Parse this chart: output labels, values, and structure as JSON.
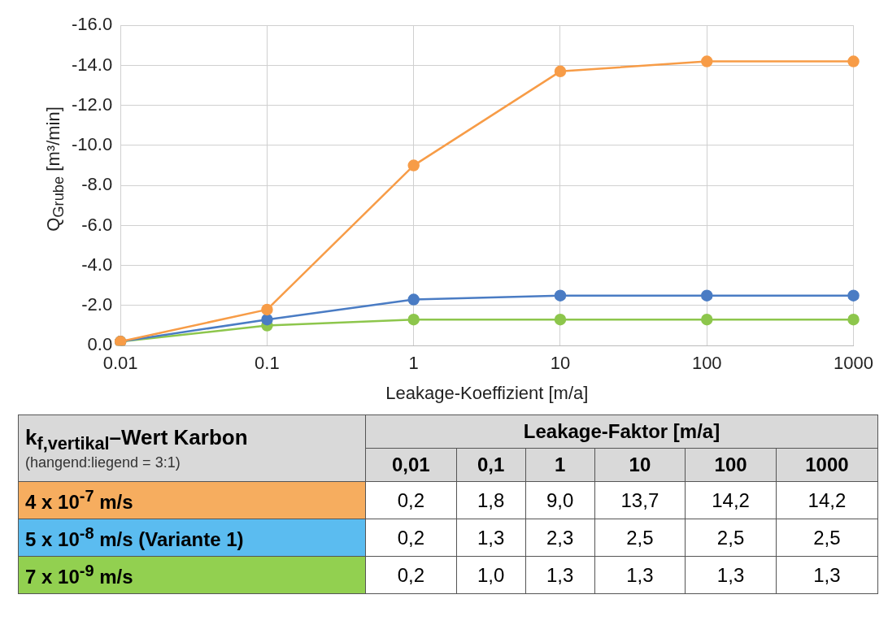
{
  "chart_data": [
    {
      "type": "line",
      "xlabel": "Leakage-Koeffizient [m/a]",
      "ylabel": "Q$_{Grube}$ [m³/min]",
      "categories": [
        "0.01",
        "0.1",
        "1",
        "10",
        "100",
        "1000"
      ],
      "ylim": [
        0,
        -16
      ],
      "yticks": [
        {
          "value": -16,
          "label": "-16.0"
        },
        {
          "value": -14,
          "label": "-14.0"
        },
        {
          "value": -12,
          "label": "-12.0"
        },
        {
          "value": -10,
          "label": "-10.0"
        },
        {
          "value": -8,
          "label": "-8.0"
        },
        {
          "value": -6,
          "label": "-6.0"
        },
        {
          "value": -4,
          "label": "-4.0"
        },
        {
          "value": -2,
          "label": "-2.0"
        },
        {
          "value": 0,
          "label": "0.0"
        }
      ],
      "grid": true,
      "marker": "circle",
      "series": [
        {
          "color": "#f79c47",
          "values": [
            -0.2,
            -1.8,
            -9.0,
            -13.7,
            -14.2,
            -14.2
          ]
        },
        {
          "color": "#4a7cc4",
          "values": [
            -0.2,
            -1.3,
            -2.3,
            -2.5,
            -2.5,
            -2.5
          ]
        },
        {
          "color": "#8dc64c",
          "values": [
            -0.2,
            -1.0,
            -1.3,
            -1.3,
            -1.3,
            -1.3
          ]
        }
      ]
    },
    {
      "type": "other",
      "colors": [
        "#f6ad5f",
        "#5bbcf0",
        "#92d050"
      ],
      "annotations": [
        "k$_{f,vertikal}$–Wert Karbon",
        "(hangend:liegend = 3:1)",
        "Leakage-Faktor [m/a]",
        "0,01",
        "0,1",
        "1",
        "10",
        "100",
        "1000",
        "4 x 10$^{-7}$ m/s",
        "0,2",
        "1,8",
        "9,0",
        "13,7",
        "14,2",
        "14,2",
        "5 x 10$^{-8}$ m/s (Variante 1)",
        "0,2",
        "1,3",
        "2,3",
        "2,5",
        "2,5",
        "2,5",
        "7 x 10$^{-9}$ m/s",
        "0,2",
        "1,0",
        "1,3",
        "1,3",
        "1,3",
        "1,3"
      ]
    }
  ]
}
